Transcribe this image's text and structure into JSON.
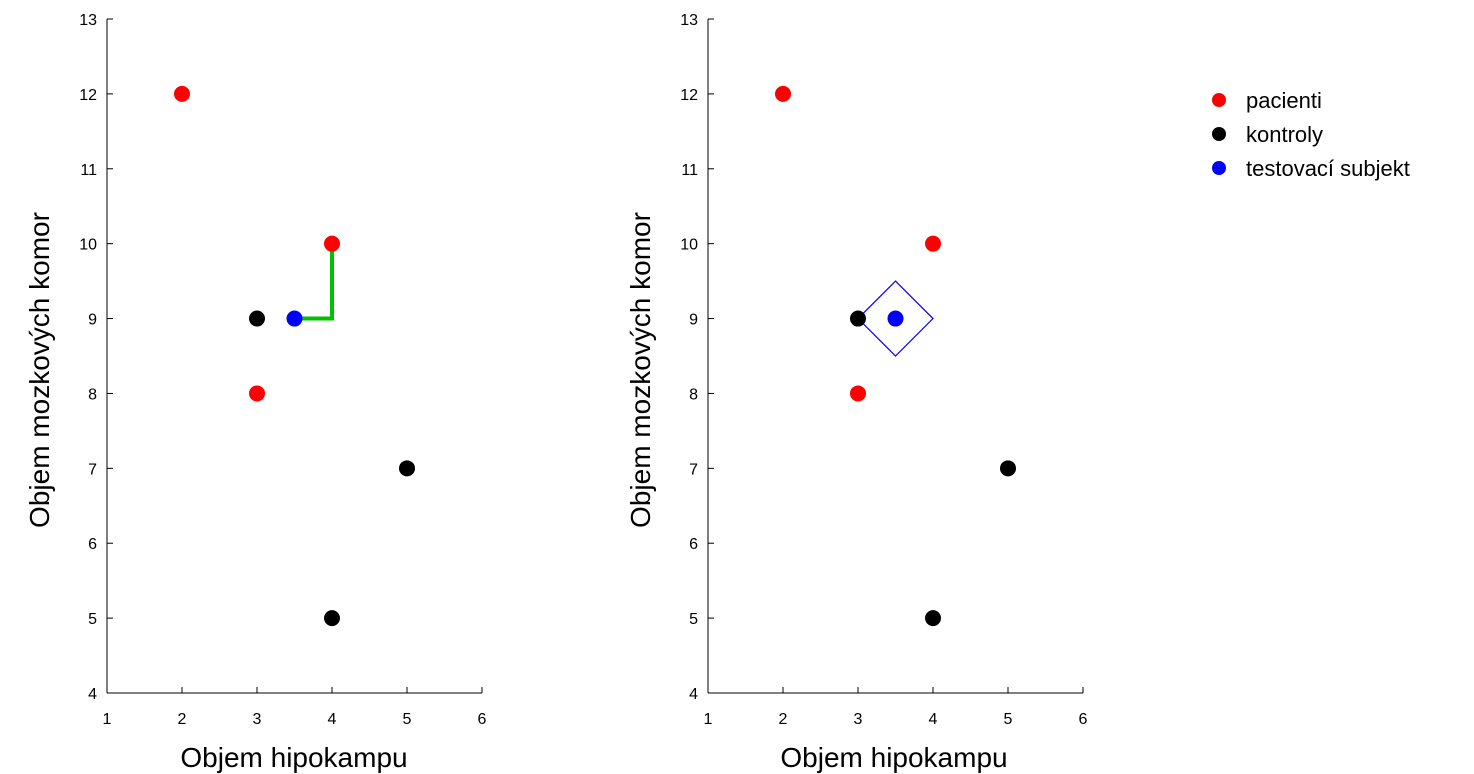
{
  "chart_data": [
    {
      "type": "scatter",
      "xlabel": "Objem hipokampu",
      "ylabel": "Objem mozkových komor",
      "xlim": [
        1,
        6
      ],
      "ylim": [
        4,
        13
      ],
      "xticks": [
        1,
        2,
        3,
        4,
        5,
        6
      ],
      "yticks": [
        4,
        5,
        6,
        7,
        8,
        9,
        10,
        11,
        12,
        13
      ],
      "grid": false,
      "series": [
        {
          "name": "pacienti",
          "color": "#ff0000",
          "points": [
            [
              2,
              12
            ],
            [
              4,
              10
            ],
            [
              3,
              8
            ]
          ]
        },
        {
          "name": "kontroly",
          "color": "#000000",
          "points": [
            [
              3,
              9
            ],
            [
              5,
              7
            ],
            [
              4,
              5
            ]
          ]
        },
        {
          "name": "testovací subjekt",
          "color": "#0000ff",
          "points": [
            [
              3.5,
              9
            ]
          ]
        }
      ],
      "annotation": {
        "type": "path",
        "color": "#00c000",
        "points": [
          [
            3.5,
            9
          ],
          [
            4,
            9
          ],
          [
            4,
            10
          ]
        ]
      }
    },
    {
      "type": "scatter",
      "xlabel": "Objem hipokampu",
      "ylabel": "Objem mozkových komor",
      "xlim": [
        1,
        6
      ],
      "ylim": [
        4,
        13
      ],
      "xticks": [
        1,
        2,
        3,
        4,
        5,
        6
      ],
      "yticks": [
        4,
        5,
        6,
        7,
        8,
        9,
        10,
        11,
        12,
        13
      ],
      "grid": false,
      "legend_position": "right",
      "series": [
        {
          "name": "pacienti",
          "color": "#ff0000",
          "points": [
            [
              2,
              12
            ],
            [
              4,
              10
            ],
            [
              3,
              8
            ]
          ]
        },
        {
          "name": "kontroly",
          "color": "#000000",
          "points": [
            [
              3,
              9
            ],
            [
              5,
              7
            ],
            [
              4,
              5
            ]
          ]
        },
        {
          "name": "testovací subjekt",
          "color": "#0000ff",
          "points": [
            [
              3.5,
              9
            ]
          ]
        }
      ],
      "annotation": {
        "type": "diamond",
        "color": "#0000ff",
        "points": [
          [
            3.5,
            9.5
          ],
          [
            4,
            9
          ],
          [
            3.5,
            8.5
          ],
          [
            3,
            9
          ]
        ]
      }
    }
  ]
}
